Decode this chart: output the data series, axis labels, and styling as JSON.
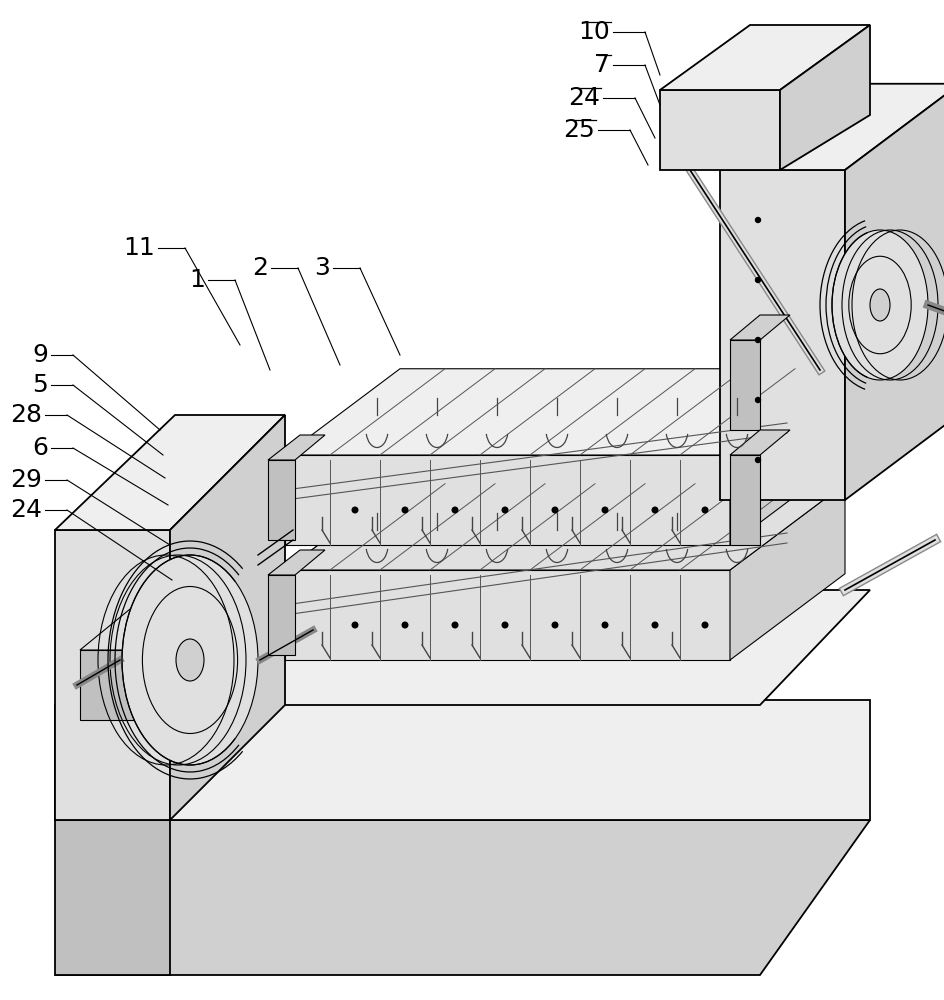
{
  "bg": "#ffffff",
  "lc": "#000000",
  "fills": {
    "white": "#ffffff",
    "light": "#efefef",
    "mid_light": "#e0e0e0",
    "mid": "#d0d0d0",
    "mid_dark": "#c0c0c0",
    "dark": "#aaaaaa",
    "very_dark": "#888888"
  },
  "lw": {
    "main": 1.3,
    "thin": 0.8,
    "thick": 2.0
  }
}
